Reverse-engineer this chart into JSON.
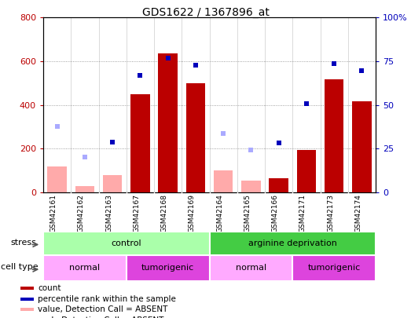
{
  "title": "GDS1622 / 1367896_at",
  "samples": [
    "GSM42161",
    "GSM42162",
    "GSM42163",
    "GSM42167",
    "GSM42168",
    "GSM42169",
    "GSM42164",
    "GSM42165",
    "GSM42166",
    "GSM42171",
    "GSM42173",
    "GSM42174"
  ],
  "count_present": [
    null,
    null,
    null,
    450,
    635,
    500,
    null,
    null,
    65,
    195,
    515,
    415
  ],
  "count_absent": [
    120,
    30,
    80,
    null,
    null,
    null,
    100,
    55,
    null,
    null,
    null,
    null
  ],
  "rank_present": [
    null,
    null,
    230,
    535,
    615,
    580,
    null,
    null,
    225,
    405,
    590,
    555
  ],
  "rank_absent": [
    300,
    160,
    null,
    null,
    null,
    null,
    270,
    195,
    null,
    null,
    null,
    null
  ],
  "ylim_left": [
    0,
    800
  ],
  "ylim_right": [
    0,
    100
  ],
  "yticks_left": [
    0,
    200,
    400,
    600,
    800
  ],
  "yticks_right": [
    0,
    25,
    50,
    75,
    100
  ],
  "ytick_labels_right": [
    "0",
    "25",
    "50",
    "75",
    "100%"
  ],
  "bar_color_present": "#bb0000",
  "bar_color_absent": "#ffaaaa",
  "dot_color_present": "#0000bb",
  "dot_color_absent": "#aaaaff",
  "grid_color": "#888888",
  "stress_groups": [
    {
      "label": "control",
      "start": 0,
      "end": 6,
      "color": "#aaffaa"
    },
    {
      "label": "arginine deprivation",
      "start": 6,
      "end": 12,
      "color": "#44cc44"
    }
  ],
  "cell_groups": [
    {
      "label": "normal",
      "start": 0,
      "end": 3,
      "color": "#ffaaff"
    },
    {
      "label": "tumorigenic",
      "start": 3,
      "end": 6,
      "color": "#dd44dd"
    },
    {
      "label": "normal",
      "start": 6,
      "end": 9,
      "color": "#ffaaff"
    },
    {
      "label": "tumorigenic",
      "start": 9,
      "end": 12,
      "color": "#dd44dd"
    }
  ],
  "legend_items": [
    {
      "label": "count",
      "color": "#bb0000"
    },
    {
      "label": "percentile rank within the sample",
      "color": "#0000bb"
    },
    {
      "label": "value, Detection Call = ABSENT",
      "color": "#ffaaaa"
    },
    {
      "label": "rank, Detection Call = ABSENT",
      "color": "#aaaaff"
    }
  ]
}
